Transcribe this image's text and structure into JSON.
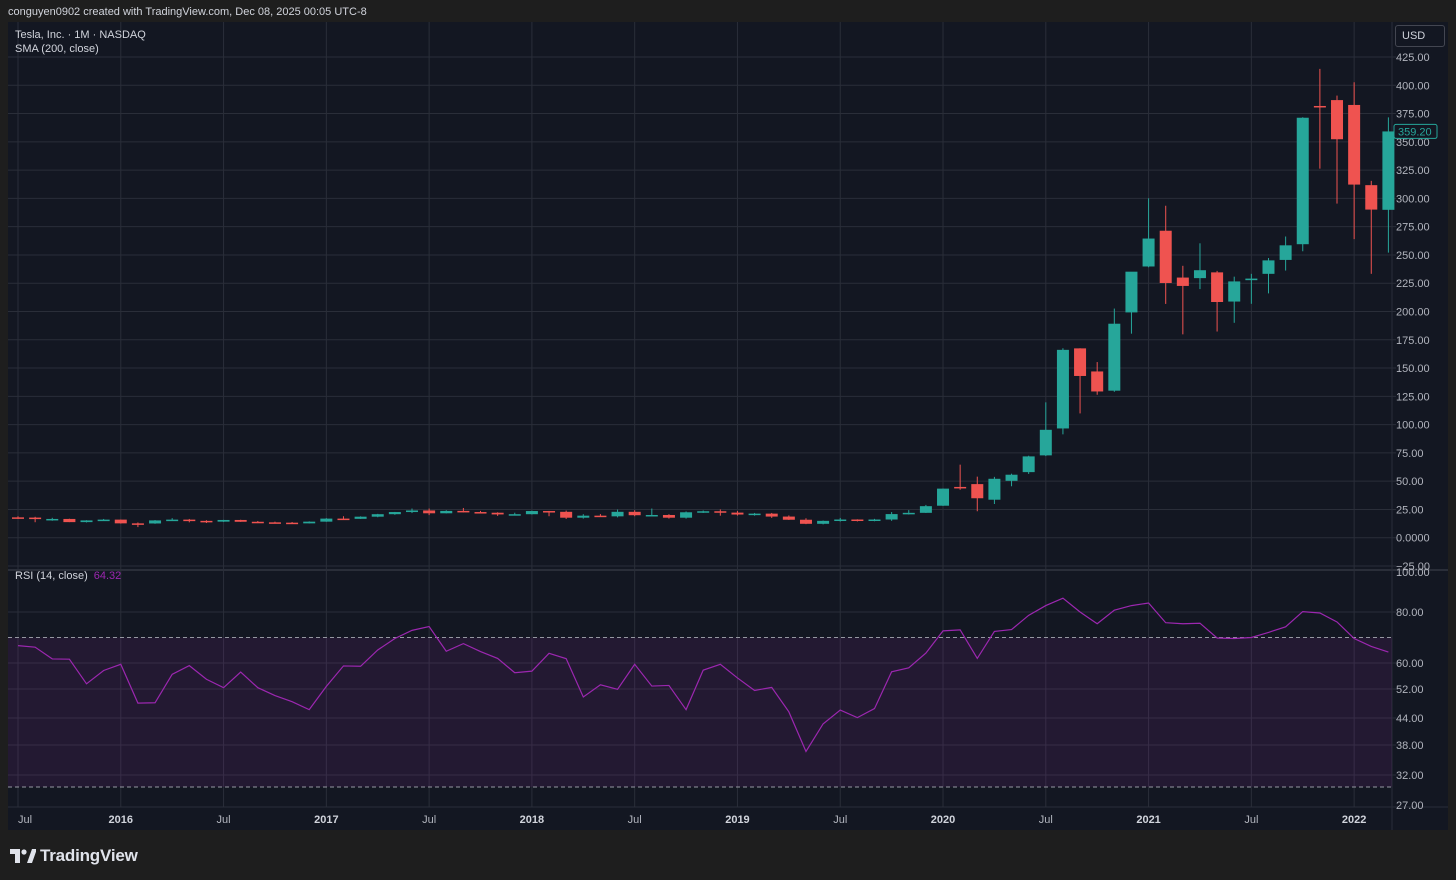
{
  "header": {
    "caption": "conguyen0902 created with TradingView.com, Dec 08, 2025 00:05 UTC-8"
  },
  "legend": {
    "symbol": "Tesla, Inc. · 1M · NASDAQ",
    "sma": "SMA (200, close)",
    "rsi_label": "RSI (14, close)",
    "rsi_value": "64.32"
  },
  "currency_button": "USD",
  "price_badge": "359.20",
  "brand": "TradingView",
  "colors": {
    "up": "#26a69a",
    "down": "#ef5350",
    "rsi": "#9c27b0",
    "grid": "#2a2e39",
    "background": "#131722"
  },
  "chart_data": [
    {
      "type": "candlestick",
      "price_axis_ticks": [
        "425.00",
        "400.00",
        "375.00",
        "350.00",
        "325.00",
        "300.00",
        "275.00",
        "250.00",
        "225.00",
        "200.00",
        "175.00",
        "150.00",
        "125.00",
        "100.00",
        "75.00",
        "50.00",
        "25.00",
        "0.0000",
        "−25.00"
      ],
      "ylim": [
        -25,
        425
      ],
      "time_axis_labels": [
        "Jul",
        "2016",
        "Jul",
        "2017",
        "Jul",
        "2018",
        "Jul",
        "2019",
        "Jul",
        "2020",
        "Jul",
        "2021",
        "Jul",
        "2022"
      ],
      "time_axis_bold": [
        false,
        true,
        false,
        true,
        false,
        true,
        false,
        true,
        false,
        true,
        false,
        true,
        false,
        true
      ],
      "x_range": [
        "2015-07",
        "2022-04"
      ],
      "candles": [
        {
          "t": "2015-07",
          "o": 18.0,
          "h": 19.0,
          "l": 16.7,
          "c": 17.8
        },
        {
          "t": "2015-08",
          "o": 17.8,
          "h": 18.5,
          "l": 13.7,
          "c": 16.6
        },
        {
          "t": "2015-09",
          "o": 16.6,
          "h": 17.6,
          "l": 15.0,
          "c": 16.6
        },
        {
          "t": "2015-10",
          "o": 16.6,
          "h": 16.8,
          "l": 13.8,
          "c": 13.8
        },
        {
          "t": "2015-11",
          "o": 13.8,
          "h": 15.5,
          "l": 13.5,
          "c": 15.3
        },
        {
          "t": "2015-12",
          "o": 15.3,
          "h": 16.6,
          "l": 14.8,
          "c": 16.0
        },
        {
          "t": "2016-01",
          "o": 16.0,
          "h": 16.1,
          "l": 12.5,
          "c": 12.7
        },
        {
          "t": "2016-02",
          "o": 12.7,
          "h": 13.5,
          "l": 9.4,
          "c": 12.6
        },
        {
          "t": "2016-03",
          "o": 12.6,
          "h": 15.6,
          "l": 12.3,
          "c": 15.3
        },
        {
          "t": "2016-04",
          "o": 15.3,
          "h": 17.3,
          "l": 14.8,
          "c": 16.0
        },
        {
          "t": "2016-05",
          "o": 16.0,
          "h": 16.6,
          "l": 13.6,
          "c": 14.9
        },
        {
          "t": "2016-06",
          "o": 14.9,
          "h": 15.5,
          "l": 13.0,
          "c": 14.2
        },
        {
          "t": "2016-07",
          "o": 14.2,
          "h": 15.8,
          "l": 14.0,
          "c": 15.7
        },
        {
          "t": "2016-08",
          "o": 15.7,
          "h": 15.9,
          "l": 14.0,
          "c": 14.1
        },
        {
          "t": "2016-09",
          "o": 14.1,
          "h": 14.8,
          "l": 13.2,
          "c": 13.6
        },
        {
          "t": "2016-10",
          "o": 13.6,
          "h": 14.2,
          "l": 12.9,
          "c": 13.3
        },
        {
          "t": "2016-11",
          "o": 13.3,
          "h": 13.9,
          "l": 12.5,
          "c": 12.7
        },
        {
          "t": "2016-12",
          "o": 12.7,
          "h": 14.5,
          "l": 12.6,
          "c": 14.2
        },
        {
          "t": "2017-01",
          "o": 14.2,
          "h": 17.3,
          "l": 14.1,
          "c": 16.9
        },
        {
          "t": "2017-02",
          "o": 16.9,
          "h": 19.0,
          "l": 16.5,
          "c": 16.7
        },
        {
          "t": "2017-03",
          "o": 16.7,
          "h": 18.9,
          "l": 16.6,
          "c": 18.6
        },
        {
          "t": "2017-04",
          "o": 18.6,
          "h": 21.1,
          "l": 18.1,
          "c": 20.8
        },
        {
          "t": "2017-05",
          "o": 20.8,
          "h": 22.8,
          "l": 20.3,
          "c": 22.7
        },
        {
          "t": "2017-06",
          "o": 22.7,
          "h": 25.8,
          "l": 21.8,
          "c": 24.1
        },
        {
          "t": "2017-07",
          "o": 24.1,
          "h": 25.8,
          "l": 20.0,
          "c": 21.6
        },
        {
          "t": "2017-08",
          "o": 21.6,
          "h": 24.3,
          "l": 21.5,
          "c": 23.7
        },
        {
          "t": "2017-09",
          "o": 23.7,
          "h": 26.3,
          "l": 22.4,
          "c": 22.7
        },
        {
          "t": "2017-10",
          "o": 22.7,
          "h": 23.7,
          "l": 21.7,
          "c": 22.1
        },
        {
          "t": "2017-11",
          "o": 22.1,
          "h": 22.5,
          "l": 19.3,
          "c": 20.6
        },
        {
          "t": "2017-12",
          "o": 20.6,
          "h": 22.1,
          "l": 19.7,
          "c": 20.8
        },
        {
          "t": "2018-01",
          "o": 20.8,
          "h": 23.9,
          "l": 20.5,
          "c": 23.6
        },
        {
          "t": "2018-02",
          "o": 23.6,
          "h": 23.7,
          "l": 19.0,
          "c": 22.9
        },
        {
          "t": "2018-03",
          "o": 22.9,
          "h": 24.0,
          "l": 16.6,
          "c": 17.7
        },
        {
          "t": "2018-04",
          "o": 17.7,
          "h": 20.8,
          "l": 16.9,
          "c": 19.5
        },
        {
          "t": "2018-05",
          "o": 19.5,
          "h": 20.9,
          "l": 18.4,
          "c": 18.9
        },
        {
          "t": "2018-06",
          "o": 18.9,
          "h": 24.9,
          "l": 18.0,
          "c": 22.9
        },
        {
          "t": "2018-07",
          "o": 22.9,
          "h": 24.3,
          "l": 19.0,
          "c": 19.9
        },
        {
          "t": "2018-08",
          "o": 19.9,
          "h": 25.8,
          "l": 19.7,
          "c": 20.1
        },
        {
          "t": "2018-09",
          "o": 20.1,
          "h": 20.8,
          "l": 16.9,
          "c": 17.7
        },
        {
          "t": "2018-10",
          "o": 17.7,
          "h": 23.2,
          "l": 16.9,
          "c": 22.5
        },
        {
          "t": "2018-11",
          "o": 22.5,
          "h": 24.1,
          "l": 21.9,
          "c": 23.4
        },
        {
          "t": "2018-12",
          "o": 23.4,
          "h": 25.0,
          "l": 19.5,
          "c": 22.2
        },
        {
          "t": "2019-01",
          "o": 22.2,
          "h": 23.6,
          "l": 19.6,
          "c": 20.5
        },
        {
          "t": "2019-02",
          "o": 20.5,
          "h": 21.9,
          "l": 19.5,
          "c": 21.3
        },
        {
          "t": "2019-03",
          "o": 21.3,
          "h": 21.9,
          "l": 17.5,
          "c": 18.7
        },
        {
          "t": "2019-04",
          "o": 18.7,
          "h": 19.7,
          "l": 15.7,
          "c": 15.9
        },
        {
          "t": "2019-05",
          "o": 15.9,
          "h": 17.2,
          "l": 12.0,
          "c": 12.3
        },
        {
          "t": "2019-06",
          "o": 12.3,
          "h": 15.2,
          "l": 11.8,
          "c": 14.9
        },
        {
          "t": "2019-07",
          "o": 14.9,
          "h": 17.5,
          "l": 14.3,
          "c": 16.1
        },
        {
          "t": "2019-08",
          "o": 16.1,
          "h": 16.3,
          "l": 14.4,
          "c": 15.0
        },
        {
          "t": "2019-09",
          "o": 15.0,
          "h": 16.7,
          "l": 14.6,
          "c": 16.1
        },
        {
          "t": "2019-10",
          "o": 16.1,
          "h": 22.7,
          "l": 14.9,
          "c": 20.9
        },
        {
          "t": "2019-11",
          "o": 20.9,
          "h": 24.4,
          "l": 20.5,
          "c": 22.0
        },
        {
          "t": "2019-12",
          "o": 22.0,
          "h": 29.0,
          "l": 21.9,
          "c": 27.9
        },
        {
          "t": "2020-01",
          "o": 28.3,
          "h": 43.5,
          "l": 28.1,
          "c": 43.4
        },
        {
          "t": "2020-02",
          "o": 44.9,
          "h": 64.6,
          "l": 42.4,
          "c": 44.5
        },
        {
          "t": "2020-03",
          "o": 47.4,
          "h": 54.0,
          "l": 23.4,
          "c": 34.9
        },
        {
          "t": "2020-04",
          "o": 33.6,
          "h": 53.8,
          "l": 29.8,
          "c": 52.1
        },
        {
          "t": "2020-05",
          "o": 50.3,
          "h": 56.6,
          "l": 45.5,
          "c": 55.7
        },
        {
          "t": "2020-06",
          "o": 58.0,
          "h": 72.5,
          "l": 56.4,
          "c": 71.9
        },
        {
          "t": "2020-07",
          "o": 72.8,
          "h": 119.7,
          "l": 72.2,
          "c": 95.4
        },
        {
          "t": "2020-08",
          "o": 96.6,
          "h": 167.5,
          "l": 91.4,
          "c": 166.1
        },
        {
          "t": "2020-09",
          "o": 167.4,
          "h": 167.5,
          "l": 109.9,
          "c": 143.0
        },
        {
          "t": "2020-10",
          "o": 147.0,
          "h": 155.3,
          "l": 126.4,
          "c": 129.3
        },
        {
          "t": "2020-11",
          "o": 130.0,
          "h": 202.6,
          "l": 129.0,
          "c": 189.2
        },
        {
          "t": "2020-12",
          "o": 199.2,
          "h": 231.7,
          "l": 180.4,
          "c": 235.2
        },
        {
          "t": "2021-01",
          "o": 239.8,
          "h": 300.1,
          "l": 239.1,
          "c": 264.5
        },
        {
          "t": "2021-02",
          "o": 271.4,
          "h": 293.5,
          "l": 206.7,
          "c": 225.2
        },
        {
          "t": "2021-03",
          "o": 230.0,
          "h": 240.4,
          "l": 179.8,
          "c": 222.6
        },
        {
          "t": "2021-04",
          "o": 229.5,
          "h": 260.3,
          "l": 219.8,
          "c": 236.5
        },
        {
          "t": "2021-05",
          "o": 234.6,
          "h": 235.9,
          "l": 182.3,
          "c": 208.4
        },
        {
          "t": "2021-06",
          "o": 208.8,
          "h": 230.8,
          "l": 190.0,
          "c": 226.6
        },
        {
          "t": "2021-07",
          "o": 227.7,
          "h": 233.3,
          "l": 206.8,
          "c": 229.1
        },
        {
          "t": "2021-08",
          "o": 233.3,
          "h": 247.3,
          "l": 216.0,
          "c": 245.2
        },
        {
          "t": "2021-09",
          "o": 245.6,
          "h": 266.3,
          "l": 236.2,
          "c": 258.5
        },
        {
          "t": "2021-10",
          "o": 259.5,
          "h": 371.7,
          "l": 253.3,
          "c": 371.3
        },
        {
          "t": "2021-11",
          "o": 381.7,
          "h": 414.5,
          "l": 326.3,
          "c": 381.6
        },
        {
          "t": "2021-12",
          "o": 386.9,
          "h": 390.9,
          "l": 295.4,
          "c": 352.3
        },
        {
          "t": "2022-01",
          "o": 382.6,
          "h": 402.7,
          "l": 264.0,
          "c": 312.2
        },
        {
          "t": "2022-02",
          "o": 311.7,
          "h": 315.5,
          "l": 233.3,
          "c": 290.1
        },
        {
          "t": "2022-03",
          "o": 289.9,
          "h": 371.6,
          "l": 252.0,
          "c": 359.2
        }
      ]
    },
    {
      "type": "line",
      "name": "RSI (14, close)",
      "axis_ticks": [
        "100.00",
        "80.00",
        "60.00",
        "52.00",
        "44.00",
        "38.00",
        "32.00",
        "27.00"
      ],
      "ylim": [
        27,
        100
      ],
      "bands": [
        70,
        30
      ],
      "values": [
        66.8,
        66.2,
        61.6,
        61.5,
        53.6,
        57.7,
        59.6,
        48.1,
        48.2,
        56.5,
        59.2,
        55.0,
        52.4,
        57.2,
        52.4,
        50.2,
        48.5,
        46.3,
        52.8,
        59.1,
        59.0,
        65.1,
        69.6,
        72.8,
        74.3,
        64.6,
        67.6,
        64.5,
        61.8,
        57.0,
        57.5,
        63.8,
        61.7,
        49.8,
        53.3,
        51.9,
        59.6,
        52.9,
        53.1,
        46.3,
        57.8,
        59.6,
        55.4,
        51.6,
        52.5,
        45.7,
        36.7,
        42.7,
        46.2,
        44.1,
        46.6,
        57.3,
        58.5,
        63.9,
        72.6,
        73.0,
        61.8,
        72.4,
        73.1,
        78.7,
        83.2,
        86.9,
        80.0,
        75.4,
        80.9,
        83.2,
        84.5,
        75.8,
        75.4,
        75.6,
        69.8,
        69.6,
        70.0,
        72.0,
        74.2,
        80.2,
        79.6,
        76.1,
        69.6,
        66.5,
        64.3
      ]
    }
  ]
}
